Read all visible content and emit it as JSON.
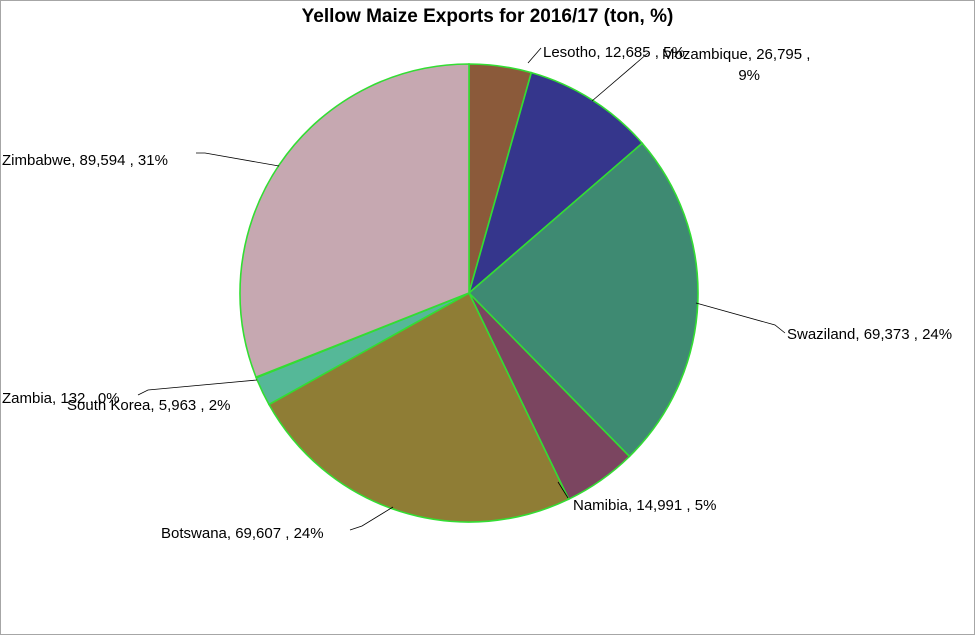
{
  "chart_data": {
    "type": "pie",
    "title": "Yellow Maize Exports for 2016/17 (ton, %)",
    "slices": [
      {
        "name": "Lesotho",
        "value": 12685,
        "percent": "5%",
        "label_lines": [
          "Lesotho, 12,685 , 5%"
        ],
        "color": "#8b5a3a"
      },
      {
        "name": "Mozambique",
        "value": 26795,
        "percent": "9%",
        "label_lines": [
          "Mozambique, 26,795 ,",
          "9%"
        ],
        "color": "#35368c"
      },
      {
        "name": "Swaziland",
        "value": 69373,
        "percent": "24%",
        "label_lines": [
          "Swaziland, 69,373 , 24%"
        ],
        "color": "#3e8a72"
      },
      {
        "name": "Namibia",
        "value": 14991,
        "percent": "5%",
        "label_lines": [
          "Namibia, 14,991 , 5%"
        ],
        "color": "#7b4560"
      },
      {
        "name": "Botswana",
        "value": 69607,
        "percent": "24%",
        "label_lines": [
          "Botswana, 69,607 , 24%"
        ],
        "color": "#8f7d35"
      },
      {
        "name": "South Korea",
        "value": 5963,
        "percent": "2%",
        "label_lines": [
          "South Korea, 5,963 , 2%"
        ],
        "color": "#55b898"
      },
      {
        "name": "Zambia",
        "value": 132,
        "percent": "0%",
        "label_lines": [
          "Zambia, 132 , 0%"
        ],
        "color": "#9ad0b8"
      },
      {
        "name": "Zimbabwe",
        "value": 89594,
        "percent": "31%",
        "label_lines": [
          "Zimbabwe, 89,594 , 31%"
        ],
        "color": "#c6a8b1"
      }
    ],
    "slice_border_color": "#33dd33",
    "legend": "none"
  }
}
